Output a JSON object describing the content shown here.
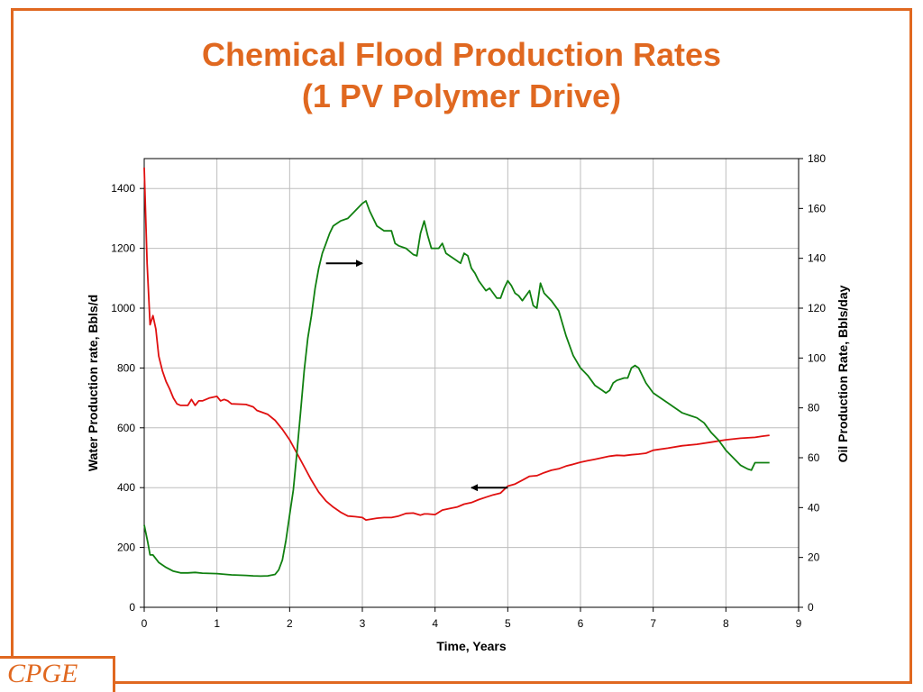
{
  "title": {
    "line1": "Chemical Flood Production Rates",
    "line2": "(1 PV Polymer Drive)"
  },
  "logo": {
    "text": "CPGE"
  },
  "colors": {
    "accent": "#e06820",
    "water": "#e01010",
    "oil": "#108010"
  },
  "chart_data": {
    "type": "line",
    "xlabel": "Time, Years",
    "ylabel_left": "Water Production rate, Bbls/d",
    "ylabel_right": "Oil Production Rate, Bbls/day",
    "xlim": [
      0,
      9
    ],
    "ylim_left": [
      0,
      1500
    ],
    "ylim_right": [
      0,
      180
    ],
    "x_ticks": [
      0,
      1,
      2,
      3,
      4,
      5,
      6,
      7,
      8,
      9
    ],
    "y_left_ticks": [
      0,
      200,
      400,
      600,
      800,
      1000,
      1200,
      1400
    ],
    "y_right_ticks": [
      0,
      20,
      40,
      60,
      80,
      100,
      120,
      140,
      160,
      180
    ],
    "grid": true,
    "series": [
      {
        "axis": "left",
        "color": "#e01010",
        "points": [
          [
            0,
            1470
          ],
          [
            0.04,
            1150
          ],
          [
            0.08,
            945
          ],
          [
            0.12,
            975
          ],
          [
            0.16,
            930
          ],
          [
            0.2,
            840
          ],
          [
            0.25,
            790
          ],
          [
            0.3,
            755
          ],
          [
            0.35,
            730
          ],
          [
            0.4,
            700
          ],
          [
            0.45,
            680
          ],
          [
            0.5,
            675
          ],
          [
            0.6,
            675
          ],
          [
            0.65,
            695
          ],
          [
            0.7,
            675
          ],
          [
            0.75,
            690
          ],
          [
            0.8,
            690
          ],
          [
            0.9,
            700
          ],
          [
            1.0,
            705
          ],
          [
            1.05,
            690
          ],
          [
            1.1,
            695
          ],
          [
            1.15,
            690
          ],
          [
            1.2,
            680
          ],
          [
            1.4,
            678
          ],
          [
            1.5,
            670
          ],
          [
            1.55,
            658
          ],
          [
            1.7,
            645
          ],
          [
            1.8,
            625
          ],
          [
            1.9,
            595
          ],
          [
            2.0,
            560
          ],
          [
            2.1,
            515
          ],
          [
            2.2,
            470
          ],
          [
            2.3,
            425
          ],
          [
            2.4,
            385
          ],
          [
            2.5,
            355
          ],
          [
            2.6,
            335
          ],
          [
            2.7,
            318
          ],
          [
            2.8,
            305
          ],
          [
            2.9,
            303
          ],
          [
            3.0,
            300
          ],
          [
            3.05,
            292
          ],
          [
            3.2,
            298
          ],
          [
            3.3,
            300
          ],
          [
            3.4,
            300
          ],
          [
            3.5,
            305
          ],
          [
            3.6,
            314
          ],
          [
            3.7,
            315
          ],
          [
            3.8,
            308
          ],
          [
            3.85,
            312
          ],
          [
            3.9,
            312
          ],
          [
            4.0,
            310
          ],
          [
            4.1,
            325
          ],
          [
            4.2,
            330
          ],
          [
            4.3,
            335
          ],
          [
            4.4,
            345
          ],
          [
            4.5,
            350
          ],
          [
            4.6,
            360
          ],
          [
            4.7,
            368
          ],
          [
            4.8,
            376
          ],
          [
            4.9,
            382
          ],
          [
            5.0,
            405
          ],
          [
            5.1,
            412
          ],
          [
            5.2,
            425
          ],
          [
            5.3,
            438
          ],
          [
            5.4,
            440
          ],
          [
            5.5,
            450
          ],
          [
            5.6,
            458
          ],
          [
            5.7,
            463
          ],
          [
            5.8,
            472
          ],
          [
            5.9,
            478
          ],
          [
            6.0,
            485
          ],
          [
            6.1,
            490
          ],
          [
            6.2,
            495
          ],
          [
            6.3,
            500
          ],
          [
            6.4,
            505
          ],
          [
            6.5,
            508
          ],
          [
            6.6,
            507
          ],
          [
            6.7,
            510
          ],
          [
            6.8,
            512
          ],
          [
            6.9,
            515
          ],
          [
            7.0,
            525
          ],
          [
            7.2,
            532
          ],
          [
            7.4,
            540
          ],
          [
            7.6,
            545
          ],
          [
            7.8,
            552
          ],
          [
            8.0,
            560
          ],
          [
            8.2,
            565
          ],
          [
            8.4,
            568
          ],
          [
            8.5,
            572
          ],
          [
            8.6,
            575
          ]
        ]
      },
      {
        "axis": "right",
        "color": "#108010",
        "points": [
          [
            0,
            33
          ],
          [
            0.05,
            26
          ],
          [
            0.08,
            21
          ],
          [
            0.12,
            21
          ],
          [
            0.2,
            18
          ],
          [
            0.3,
            16
          ],
          [
            0.4,
            14.5
          ],
          [
            0.5,
            13.8
          ],
          [
            0.6,
            13.8
          ],
          [
            0.7,
            14
          ],
          [
            0.8,
            13.7
          ],
          [
            1.0,
            13.5
          ],
          [
            1.2,
            13
          ],
          [
            1.4,
            12.8
          ],
          [
            1.5,
            12.6
          ],
          [
            1.6,
            12.5
          ],
          [
            1.7,
            12.6
          ],
          [
            1.8,
            13.2
          ],
          [
            1.85,
            15
          ],
          [
            1.9,
            19
          ],
          [
            1.95,
            27
          ],
          [
            2.0,
            37
          ],
          [
            2.05,
            47
          ],
          [
            2.1,
            62
          ],
          [
            2.15,
            78
          ],
          [
            2.2,
            95
          ],
          [
            2.25,
            108
          ],
          [
            2.3,
            117
          ],
          [
            2.35,
            128
          ],
          [
            2.4,
            136
          ],
          [
            2.45,
            142
          ],
          [
            2.5,
            146
          ],
          [
            2.55,
            150
          ],
          [
            2.6,
            153
          ],
          [
            2.7,
            155
          ],
          [
            2.8,
            156
          ],
          [
            2.9,
            159
          ],
          [
            3.0,
            162
          ],
          [
            3.05,
            163
          ],
          [
            3.1,
            159
          ],
          [
            3.2,
            153
          ],
          [
            3.25,
            152
          ],
          [
            3.3,
            151
          ],
          [
            3.4,
            151
          ],
          [
            3.45,
            146
          ],
          [
            3.5,
            145
          ],
          [
            3.6,
            144
          ],
          [
            3.7,
            141.5
          ],
          [
            3.75,
            141
          ],
          [
            3.8,
            150
          ],
          [
            3.85,
            155
          ],
          [
            3.9,
            149
          ],
          [
            3.95,
            144
          ],
          [
            4.0,
            144
          ],
          [
            4.05,
            144
          ],
          [
            4.1,
            146
          ],
          [
            4.15,
            142
          ],
          [
            4.2,
            141
          ],
          [
            4.3,
            139
          ],
          [
            4.35,
            138
          ],
          [
            4.4,
            142
          ],
          [
            4.45,
            141
          ],
          [
            4.5,
            136
          ],
          [
            4.55,
            134
          ],
          [
            4.6,
            131
          ],
          [
            4.7,
            127
          ],
          [
            4.75,
            128
          ],
          [
            4.8,
            126
          ],
          [
            4.85,
            124
          ],
          [
            4.9,
            124
          ],
          [
            4.95,
            128
          ],
          [
            5.0,
            131
          ],
          [
            5.05,
            129
          ],
          [
            5.1,
            126
          ],
          [
            5.15,
            125
          ],
          [
            5.2,
            123
          ],
          [
            5.3,
            127
          ],
          [
            5.35,
            121
          ],
          [
            5.4,
            120
          ],
          [
            5.45,
            130
          ],
          [
            5.5,
            126
          ],
          [
            5.6,
            123
          ],
          [
            5.7,
            119
          ],
          [
            5.8,
            109
          ],
          [
            5.9,
            101
          ],
          [
            6.0,
            96
          ],
          [
            6.1,
            93
          ],
          [
            6.2,
            89
          ],
          [
            6.3,
            87
          ],
          [
            6.35,
            86
          ],
          [
            6.4,
            87
          ],
          [
            6.45,
            90
          ],
          [
            6.5,
            91
          ],
          [
            6.6,
            92
          ],
          [
            6.65,
            92
          ],
          [
            6.7,
            96
          ],
          [
            6.75,
            97
          ],
          [
            6.8,
            96
          ],
          [
            6.9,
            90
          ],
          [
            7.0,
            86
          ],
          [
            7.1,
            84
          ],
          [
            7.2,
            82
          ],
          [
            7.3,
            80
          ],
          [
            7.4,
            78
          ],
          [
            7.5,
            77
          ],
          [
            7.6,
            76
          ],
          [
            7.7,
            74
          ],
          [
            7.8,
            70
          ],
          [
            7.9,
            67
          ],
          [
            8.0,
            63
          ],
          [
            8.1,
            60
          ],
          [
            8.2,
            57
          ],
          [
            8.3,
            55.5
          ],
          [
            8.35,
            55
          ],
          [
            8.4,
            58
          ],
          [
            8.5,
            58
          ],
          [
            8.6,
            58
          ]
        ]
      }
    ],
    "annotations": [
      {
        "type": "arrow",
        "direction": "right",
        "axis": "right",
        "from": [
          2.5,
          138
        ],
        "to": [
          3.0,
          138
        ]
      },
      {
        "type": "arrow",
        "direction": "left",
        "axis": "left",
        "from": [
          5.0,
          400
        ],
        "to": [
          4.5,
          400
        ]
      }
    ]
  }
}
